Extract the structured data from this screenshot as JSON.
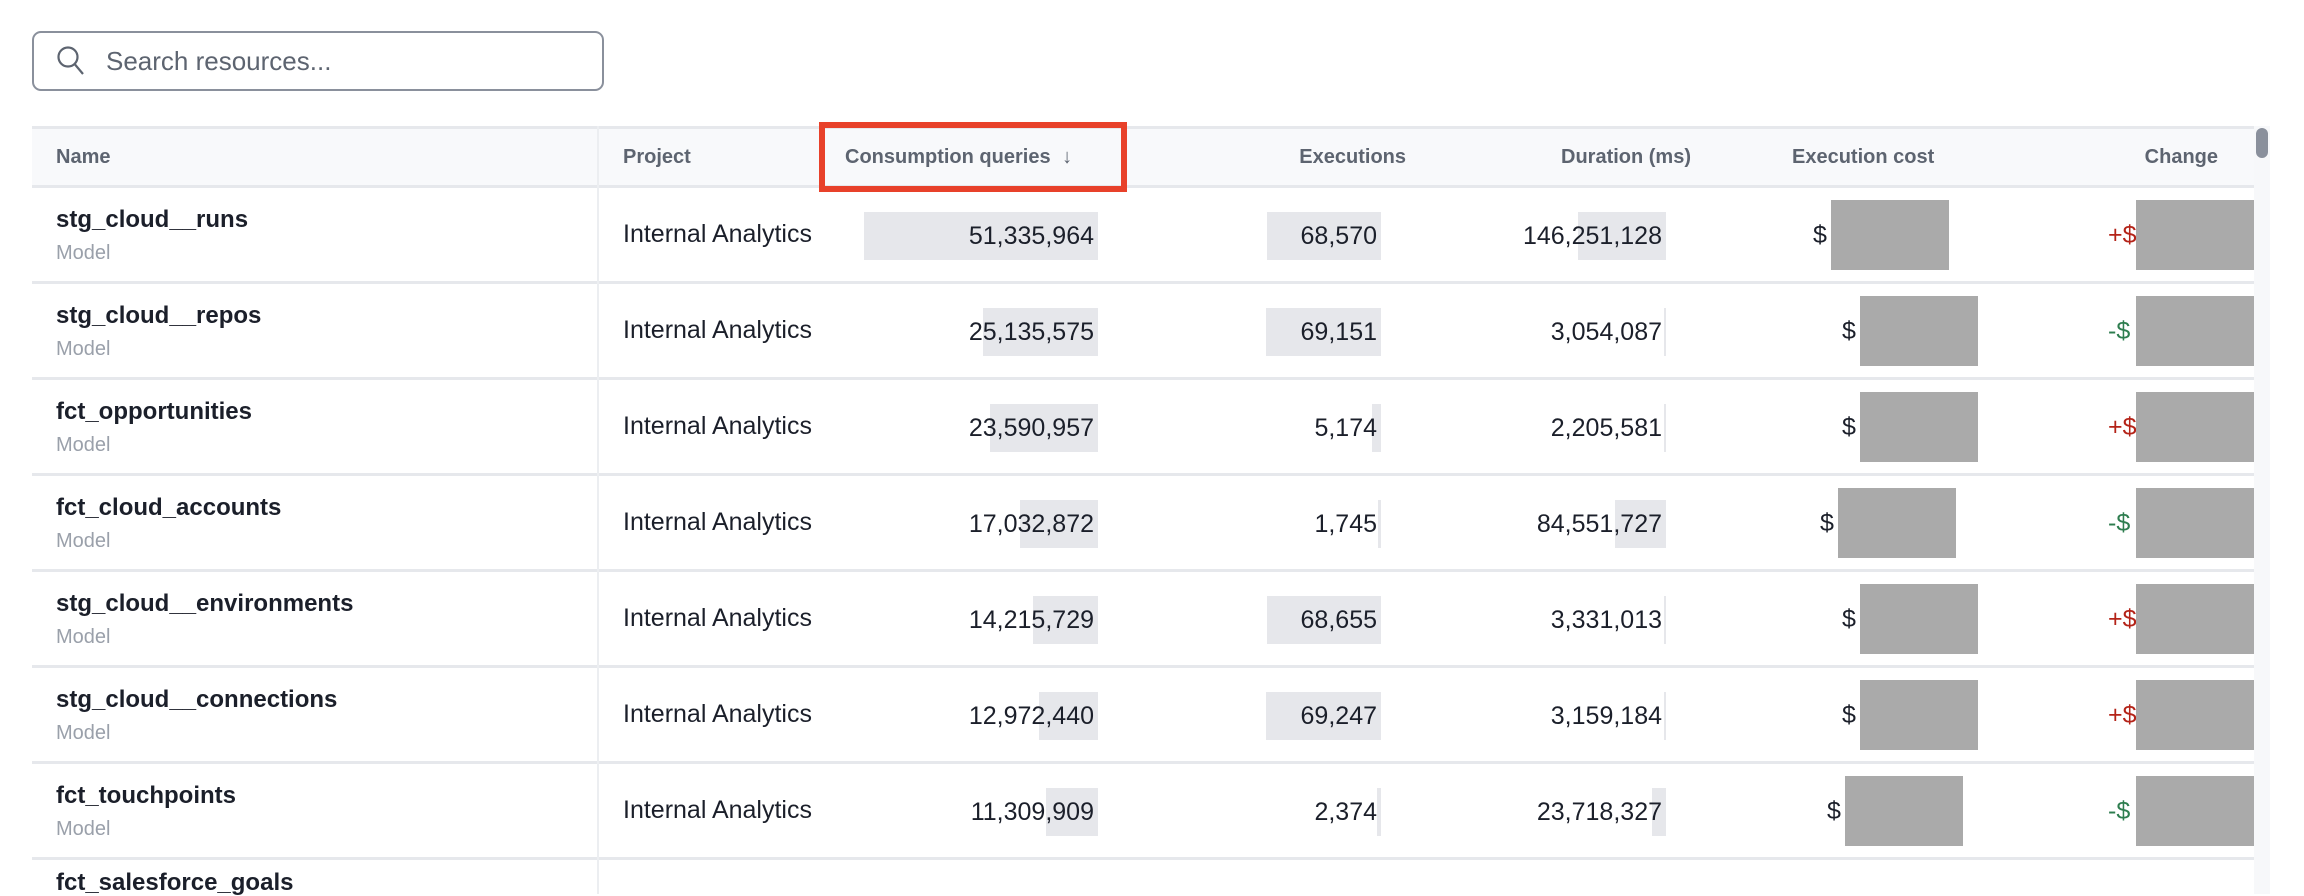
{
  "search": {
    "placeholder": "Search resources...",
    "value": ""
  },
  "columns": {
    "name": "Name",
    "project": "Project",
    "consumption": "Consumption queries",
    "sort_indicator": "↓",
    "executions": "Executions",
    "duration": "Duration (ms)",
    "cost": "Execution cost",
    "change": "Change"
  },
  "colors": {
    "increase": "#b42318",
    "decrease": "#2e7d4f",
    "highlight": "#e8412a",
    "bar": "#e6e7eb"
  },
  "rows": [
    {
      "name": "stg_cloud__runs",
      "type": "Model",
      "project": "Internal Analytics",
      "consumption": "51,335,964",
      "consumption_value": 51335964,
      "executions": "68,570",
      "executions_value": 68570,
      "duration": "146,251,128",
      "duration_value": 146251128,
      "cost_prefix": "$",
      "change_prefix": "+$"
    },
    {
      "name": "stg_cloud__repos",
      "type": "Model",
      "project": "Internal Analytics",
      "consumption": "25,135,575",
      "consumption_value": 25135575,
      "executions": "69,151",
      "executions_value": 69151,
      "duration": "3,054,087",
      "duration_value": 3054087,
      "cost_prefix": "$",
      "change_prefix": "-$"
    },
    {
      "name": "fct_opportunities",
      "type": "Model",
      "project": "Internal Analytics",
      "consumption": "23,590,957",
      "consumption_value": 23590957,
      "executions": "5,174",
      "executions_value": 5174,
      "duration": "2,205,581",
      "duration_value": 2205581,
      "cost_prefix": "$",
      "change_prefix": "+$"
    },
    {
      "name": "fct_cloud_accounts",
      "type": "Model",
      "project": "Internal Analytics",
      "consumption": "17,032,872",
      "consumption_value": 17032872,
      "executions": "1,745",
      "executions_value": 1745,
      "duration": "84,551,727",
      "duration_value": 84551727,
      "cost_prefix": "$",
      "change_prefix": "-$"
    },
    {
      "name": "stg_cloud__environments",
      "type": "Model",
      "project": "Internal Analytics",
      "consumption": "14,215,729",
      "consumption_value": 14215729,
      "executions": "68,655",
      "executions_value": 68655,
      "duration": "3,331,013",
      "duration_value": 3331013,
      "cost_prefix": "$",
      "change_prefix": "+$"
    },
    {
      "name": "stg_cloud__connections",
      "type": "Model",
      "project": "Internal Analytics",
      "consumption": "12,972,440",
      "consumption_value": 12972440,
      "executions": "69,247",
      "executions_value": 69247,
      "duration": "3,159,184",
      "duration_value": 3159184,
      "cost_prefix": "$",
      "change_prefix": "+$"
    },
    {
      "name": "fct_touchpoints",
      "type": "Model",
      "project": "Internal Analytics",
      "consumption": "11,309,909",
      "consumption_value": 11309909,
      "executions": "2,374",
      "executions_value": 2374,
      "duration": "23,718,327",
      "duration_value": 23718327,
      "cost_prefix": "$",
      "change_prefix": "-$"
    },
    {
      "name": "fct_salesforce_goals"
    }
  ]
}
